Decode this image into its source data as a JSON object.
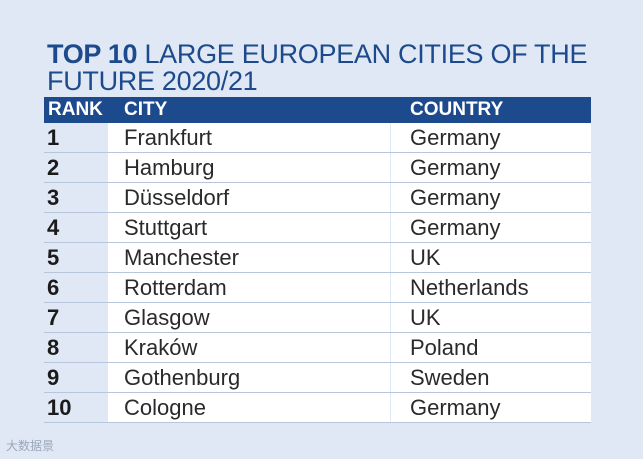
{
  "title": {
    "bold_part": "TOP 10",
    "rest_part": " LARGE EUROPEAN CITIES OF THE FUTURE 2020/21"
  },
  "table": {
    "headers": [
      "RANK",
      "CITY",
      "COUNTRY"
    ],
    "rows": [
      {
        "rank": "1",
        "city": "Frankfurt",
        "country": "Germany"
      },
      {
        "rank": "2",
        "city": "Hamburg",
        "country": "Germany"
      },
      {
        "rank": "3",
        "city": "Düsseldorf",
        "country": "Germany"
      },
      {
        "rank": "4",
        "city": "Stuttgart",
        "country": "Germany"
      },
      {
        "rank": "5",
        "city": "Manchester",
        "country": "UK"
      },
      {
        "rank": "6",
        "city": "Rotterdam",
        "country": "Netherlands"
      },
      {
        "rank": "7",
        "city": "Glasgow",
        "country": "UK"
      },
      {
        "rank": "8",
        "city": "Kraków",
        "country": "Poland"
      },
      {
        "rank": "9",
        "city": "Gothenburg",
        "country": "Sweden"
      },
      {
        "rank": "10",
        "city": "Cologne",
        "country": "Germany"
      }
    ]
  },
  "colors": {
    "accent": "#1d4a8c",
    "background": "#dfe8f4",
    "cell": "#ffffff"
  },
  "watermark": "大数据景"
}
